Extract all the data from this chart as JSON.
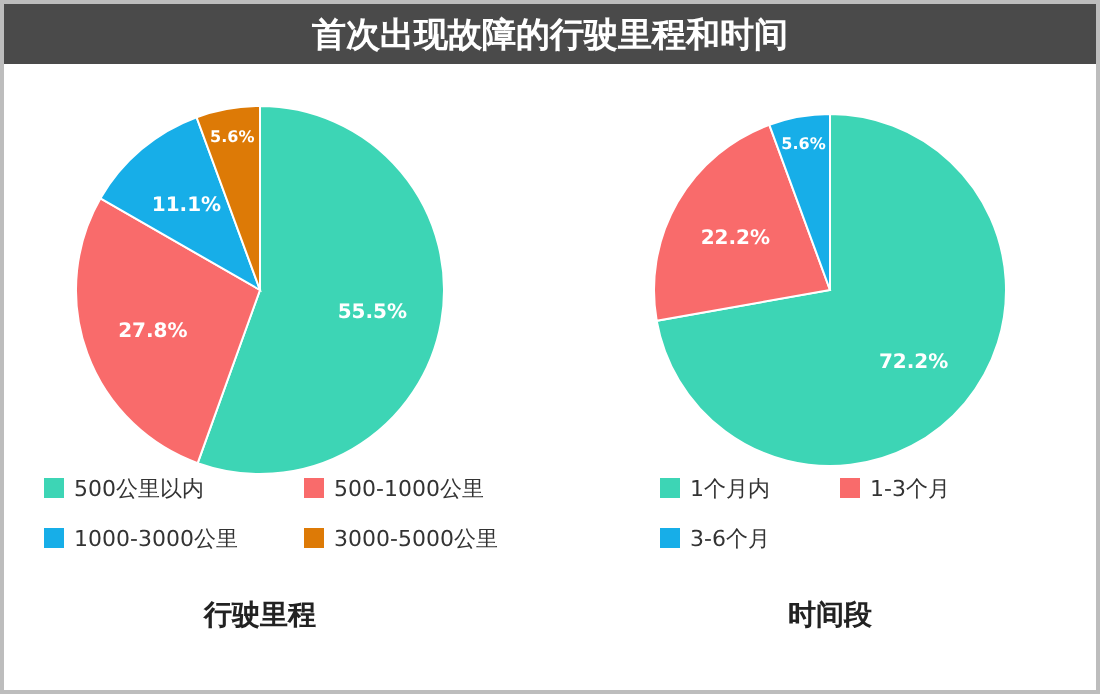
{
  "chart_data": [
    {
      "type": "pie",
      "title": "首次出现故障的行驶里程和时间",
      "xlabel": "行驶里程",
      "legend": "bottom",
      "categories": [
        "500公里以内",
        "500-1000公里",
        "1000-3000公里",
        "3000-5000公里"
      ],
      "values": [
        55.5,
        27.8,
        11.1,
        5.6
      ],
      "colors": [
        "#3dd5b5",
        "#f96b6b",
        "#17aee8",
        "#dd7a06"
      ],
      "value_labels": [
        "55.5%",
        "27.8%",
        "11.1%",
        "5.6%"
      ]
    },
    {
      "type": "pie",
      "xlabel": "时间段",
      "legend": "bottom",
      "categories": [
        "1个月内",
        "1-3个月",
        "3-6个月"
      ],
      "values": [
        72.2,
        22.2,
        5.6
      ],
      "colors": [
        "#3dd5b5",
        "#f96b6b",
        "#17aee8"
      ],
      "value_labels": [
        "72.2%",
        "22.2%",
        "5.6%"
      ]
    }
  ]
}
